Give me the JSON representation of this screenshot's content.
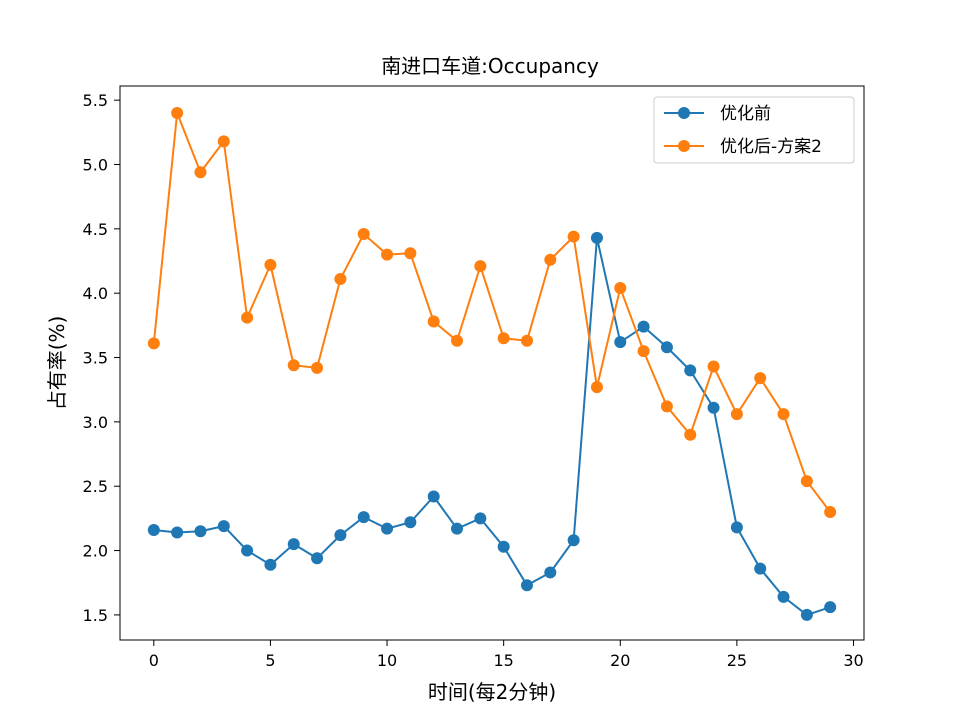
{
  "chart_data": {
    "type": "line",
    "title": "南进口车道:Occupancy",
    "xlabel": "时间(每2分钟)",
    "ylabel": "占有率(%)",
    "xlim": [
      -1.45,
      30.45
    ],
    "ylim": [
      1.305,
      5.61
    ],
    "xticks": [
      0,
      5,
      10,
      15,
      20,
      25,
      30
    ],
    "xtick_labels": [
      "0",
      "5",
      "10",
      "15",
      "20",
      "25",
      "30"
    ],
    "yticks": [
      1.5,
      2.0,
      2.5,
      3.0,
      3.5,
      4.0,
      4.5,
      5.0,
      5.5
    ],
    "ytick_labels": [
      "1.5",
      "2.0",
      "2.5",
      "3.0",
      "3.5",
      "4.0",
      "4.5",
      "5.0",
      "5.5"
    ],
    "grid": false,
    "legend_position": "top-right",
    "x": [
      0,
      1,
      2,
      3,
      4,
      5,
      6,
      7,
      8,
      9,
      10,
      11,
      12,
      13,
      14,
      15,
      16,
      17,
      18,
      19,
      20,
      21,
      22,
      23,
      24,
      25,
      26,
      27,
      28,
      29
    ],
    "series": [
      {
        "name": "优化前",
        "color": "#1f77b4",
        "values": [
          2.16,
          2.14,
          2.15,
          2.19,
          2.0,
          1.89,
          2.05,
          1.94,
          2.12,
          2.26,
          2.17,
          2.22,
          2.42,
          2.17,
          2.25,
          2.03,
          1.73,
          1.83,
          2.08,
          4.43,
          3.62,
          3.74,
          3.58,
          3.4,
          3.11,
          2.18,
          1.86,
          1.64,
          1.5,
          1.56
        ]
      },
      {
        "name": "优化后-方案2",
        "color": "#ff7f0e",
        "values": [
          3.61,
          5.4,
          4.94,
          5.18,
          3.81,
          4.22,
          3.44,
          3.42,
          4.11,
          4.46,
          4.3,
          4.31,
          3.78,
          3.63,
          4.21,
          3.65,
          3.63,
          4.26,
          4.44,
          3.27,
          4.04,
          3.55,
          3.12,
          2.9,
          3.43,
          3.06,
          3.34,
          3.06,
          2.54,
          2.3
        ]
      }
    ]
  }
}
